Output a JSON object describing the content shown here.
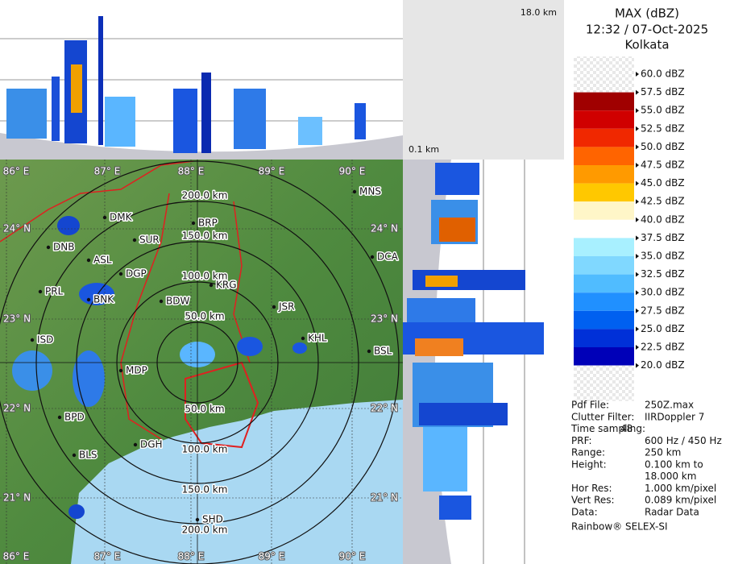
{
  "header": {
    "title": "MAX (dBZ)",
    "datetime": "12:32 / 07-Oct-2025",
    "location": "Kolkata"
  },
  "profile_labels": {
    "top_height": "18.0 km",
    "bottom_height": "0.1 km"
  },
  "legend": [
    {
      "label": "60.0 dBZ",
      "color": "#f2f2f2"
    },
    {
      "label": "57.5 dBZ",
      "color": "#a00000"
    },
    {
      "label": "55.0 dBZ",
      "color": "#d00000"
    },
    {
      "label": "52.5 dBZ",
      "color": "#f02800"
    },
    {
      "label": "50.0 dBZ",
      "color": "#ff6400"
    },
    {
      "label": "47.5 dBZ",
      "color": "#ff9a00"
    },
    {
      "label": "45.0 dBZ",
      "color": "#ffc800"
    },
    {
      "label": "42.5 dBZ",
      "color": "#fff6c8"
    },
    {
      "label": "40.0 dBZ",
      "color": "#ffffff"
    },
    {
      "label": "37.5 dBZ",
      "color": "#a8f0ff"
    },
    {
      "label": "35.0 dBZ",
      "color": "#80d8ff"
    },
    {
      "label": "32.5 dBZ",
      "color": "#50bcff"
    },
    {
      "label": "30.0 dBZ",
      "color": "#2090ff"
    },
    {
      "label": "27.5 dBZ",
      "color": "#0060f0"
    },
    {
      "label": "25.0 dBZ",
      "color": "#0030d8"
    },
    {
      "label": "22.5 dBZ",
      "color": "#0000b8"
    },
    {
      "label": "20.0 dBZ",
      "color": "#f2f2f2"
    }
  ],
  "map": {
    "longitudes": [
      "86° E",
      "87° E",
      "88° E",
      "89° E",
      "90° E"
    ],
    "latitudes": [
      "24° N",
      "23° N",
      "22° N",
      "21° N"
    ],
    "range_rings": [
      "50.0 km",
      "100.0 km",
      "150.0 km",
      "200.0 km"
    ],
    "cities": [
      "MNS",
      "BRP",
      "DMK",
      "SUR",
      "DNB",
      "ASL",
      "DGP",
      "DCA",
      "KRG",
      "PRL",
      "BNK",
      "BDW",
      "JSR",
      "KHL",
      "ISD",
      "BSL",
      "MDP",
      "BPD",
      "DGH",
      "BLS",
      "SHD"
    ]
  },
  "info": [
    [
      "Pdf File:",
      "250Z.max"
    ],
    [
      "Clutter Filter:",
      "IIRDoppler 7"
    ],
    [
      "Time sampling:",
      "48"
    ],
    [
      "PRF:",
      "600 Hz / 450 Hz"
    ],
    [
      "Range:",
      "250 km"
    ],
    [
      "Height:",
      "0.100 km to",
      "18.000 km"
    ],
    [
      "Hor Res:",
      "1.000 km/pixel"
    ],
    [
      "Vert Res:",
      "0.089 km/pixel"
    ],
    [
      "Data:",
      "Radar Data"
    ]
  ],
  "footer": "Rainbow® SELEX-SI"
}
